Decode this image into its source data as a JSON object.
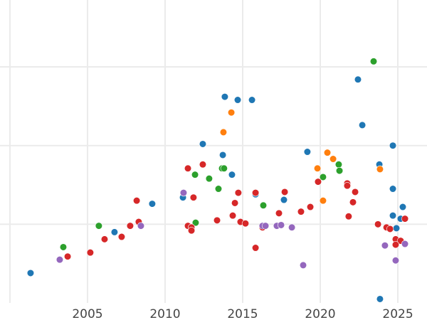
{
  "chart_data": {
    "type": "scatter",
    "title": "",
    "xlabel": "",
    "ylabel": "",
    "xlim": [
      1999.36,
      2026.88
    ],
    "ylim": [
      0,
      3.85
    ],
    "grid": true,
    "x_ticks": [
      2000,
      2005,
      2010,
      2015,
      2020,
      2025
    ],
    "x_tick_labels": [
      "",
      "2005",
      "2010",
      "2015",
      "2020",
      "2025"
    ],
    "y_ticks": [
      0,
      1,
      2,
      3
    ],
    "series": [
      {
        "name": "blue",
        "color": "#1f77b4",
        "points": [
          [
            2001.33,
            0.38
          ],
          [
            2006.74,
            0.9
          ],
          [
            2009.17,
            1.26
          ],
          [
            2011.15,
            1.34
          ],
          [
            2012.43,
            2.02
          ],
          [
            2013.72,
            1.88
          ],
          [
            2013.85,
            2.62
          ],
          [
            2014.31,
            1.63
          ],
          [
            2014.68,
            2.58
          ],
          [
            2015.6,
            2.58
          ],
          [
            2015.83,
            1.38
          ],
          [
            2017.66,
            1.31
          ],
          [
            2019.17,
            1.92
          ],
          [
            2022.43,
            2.84
          ],
          [
            2022.71,
            2.26
          ],
          [
            2023.81,
            1.76
          ],
          [
            2024.68,
            2.0
          ],
          [
            2024.68,
            1.45
          ],
          [
            2024.68,
            1.11
          ],
          [
            2024.91,
            0.95
          ],
          [
            2025.18,
            1.07
          ],
          [
            2025.32,
            1.22
          ],
          [
            2023.85,
            0.05
          ]
        ]
      },
      {
        "name": "orange",
        "color": "#ff7f0e",
        "points": [
          [
            2013.76,
            2.17
          ],
          [
            2014.27,
            2.42
          ],
          [
            2019.82,
            1.71
          ],
          [
            2020.18,
            1.3
          ],
          [
            2020.46,
            1.91
          ],
          [
            2020.83,
            1.83
          ],
          [
            2023.85,
            1.7
          ]
        ]
      },
      {
        "name": "green",
        "color": "#2ca02c",
        "points": [
          [
            2003.44,
            0.71
          ],
          [
            2005.73,
            0.98
          ],
          [
            2011.93,
            1.63
          ],
          [
            2011.97,
            1.02
          ],
          [
            2012.84,
            1.58
          ],
          [
            2013.44,
            1.45
          ],
          [
            2013.67,
            1.71
          ],
          [
            2013.8,
            1.71
          ],
          [
            2016.33,
            1.24
          ],
          [
            2020.18,
            1.6
          ],
          [
            2021.19,
            1.76
          ],
          [
            2021.24,
            1.68
          ],
          [
            2023.44,
            3.07
          ]
        ]
      },
      {
        "name": "red",
        "color": "#d62728",
        "points": [
          [
            2003.72,
            0.59
          ],
          [
            2005.18,
            0.64
          ],
          [
            2006.1,
            0.81
          ],
          [
            2007.2,
            0.84
          ],
          [
            2007.75,
            0.98
          ],
          [
            2008.17,
            1.3
          ],
          [
            2008.3,
            1.03
          ],
          [
            2011.47,
            1.71
          ],
          [
            2011.47,
            0.98
          ],
          [
            2011.7,
            0.96
          ],
          [
            2011.7,
            0.92
          ],
          [
            2011.83,
            1.34
          ],
          [
            2012.43,
            1.76
          ],
          [
            2013.35,
            1.05
          ],
          [
            2014.36,
            1.11
          ],
          [
            2014.5,
            1.27
          ],
          [
            2014.72,
            1.4
          ],
          [
            2014.86,
            1.03
          ],
          [
            2015.18,
            1.01
          ],
          [
            2015.83,
            1.4
          ],
          [
            2015.83,
            0.7
          ],
          [
            2016.28,
            0.96
          ],
          [
            2017.34,
            1.14
          ],
          [
            2017.71,
            1.41
          ],
          [
            2018.76,
            1.16
          ],
          [
            2019.36,
            1.22
          ],
          [
            2019.86,
            1.54
          ],
          [
            2021.74,
            1.52
          ],
          [
            2021.74,
            1.49
          ],
          [
            2021.83,
            1.1
          ],
          [
            2022.11,
            1.28
          ],
          [
            2022.25,
            1.41
          ],
          [
            2023.72,
            1.0
          ],
          [
            2024.27,
            0.96
          ],
          [
            2024.5,
            0.94
          ],
          [
            2024.86,
            0.81
          ],
          [
            2025.18,
            0.79
          ],
          [
            2024.86,
            0.74
          ],
          [
            2025.46,
            1.07
          ]
        ]
      },
      {
        "name": "purple",
        "color": "#9467bd",
        "points": [
          [
            2003.21,
            0.55
          ],
          [
            2008.44,
            0.98
          ],
          [
            2011.19,
            1.4
          ],
          [
            2016.28,
            0.98
          ],
          [
            2016.47,
            0.98
          ],
          [
            2017.2,
            0.98
          ],
          [
            2017.48,
            0.99
          ],
          [
            2018.17,
            0.96
          ],
          [
            2018.9,
            0.48
          ],
          [
            2024.17,
            0.73
          ],
          [
            2024.86,
            0.54
          ],
          [
            2025.46,
            0.75
          ]
        ]
      }
    ]
  }
}
